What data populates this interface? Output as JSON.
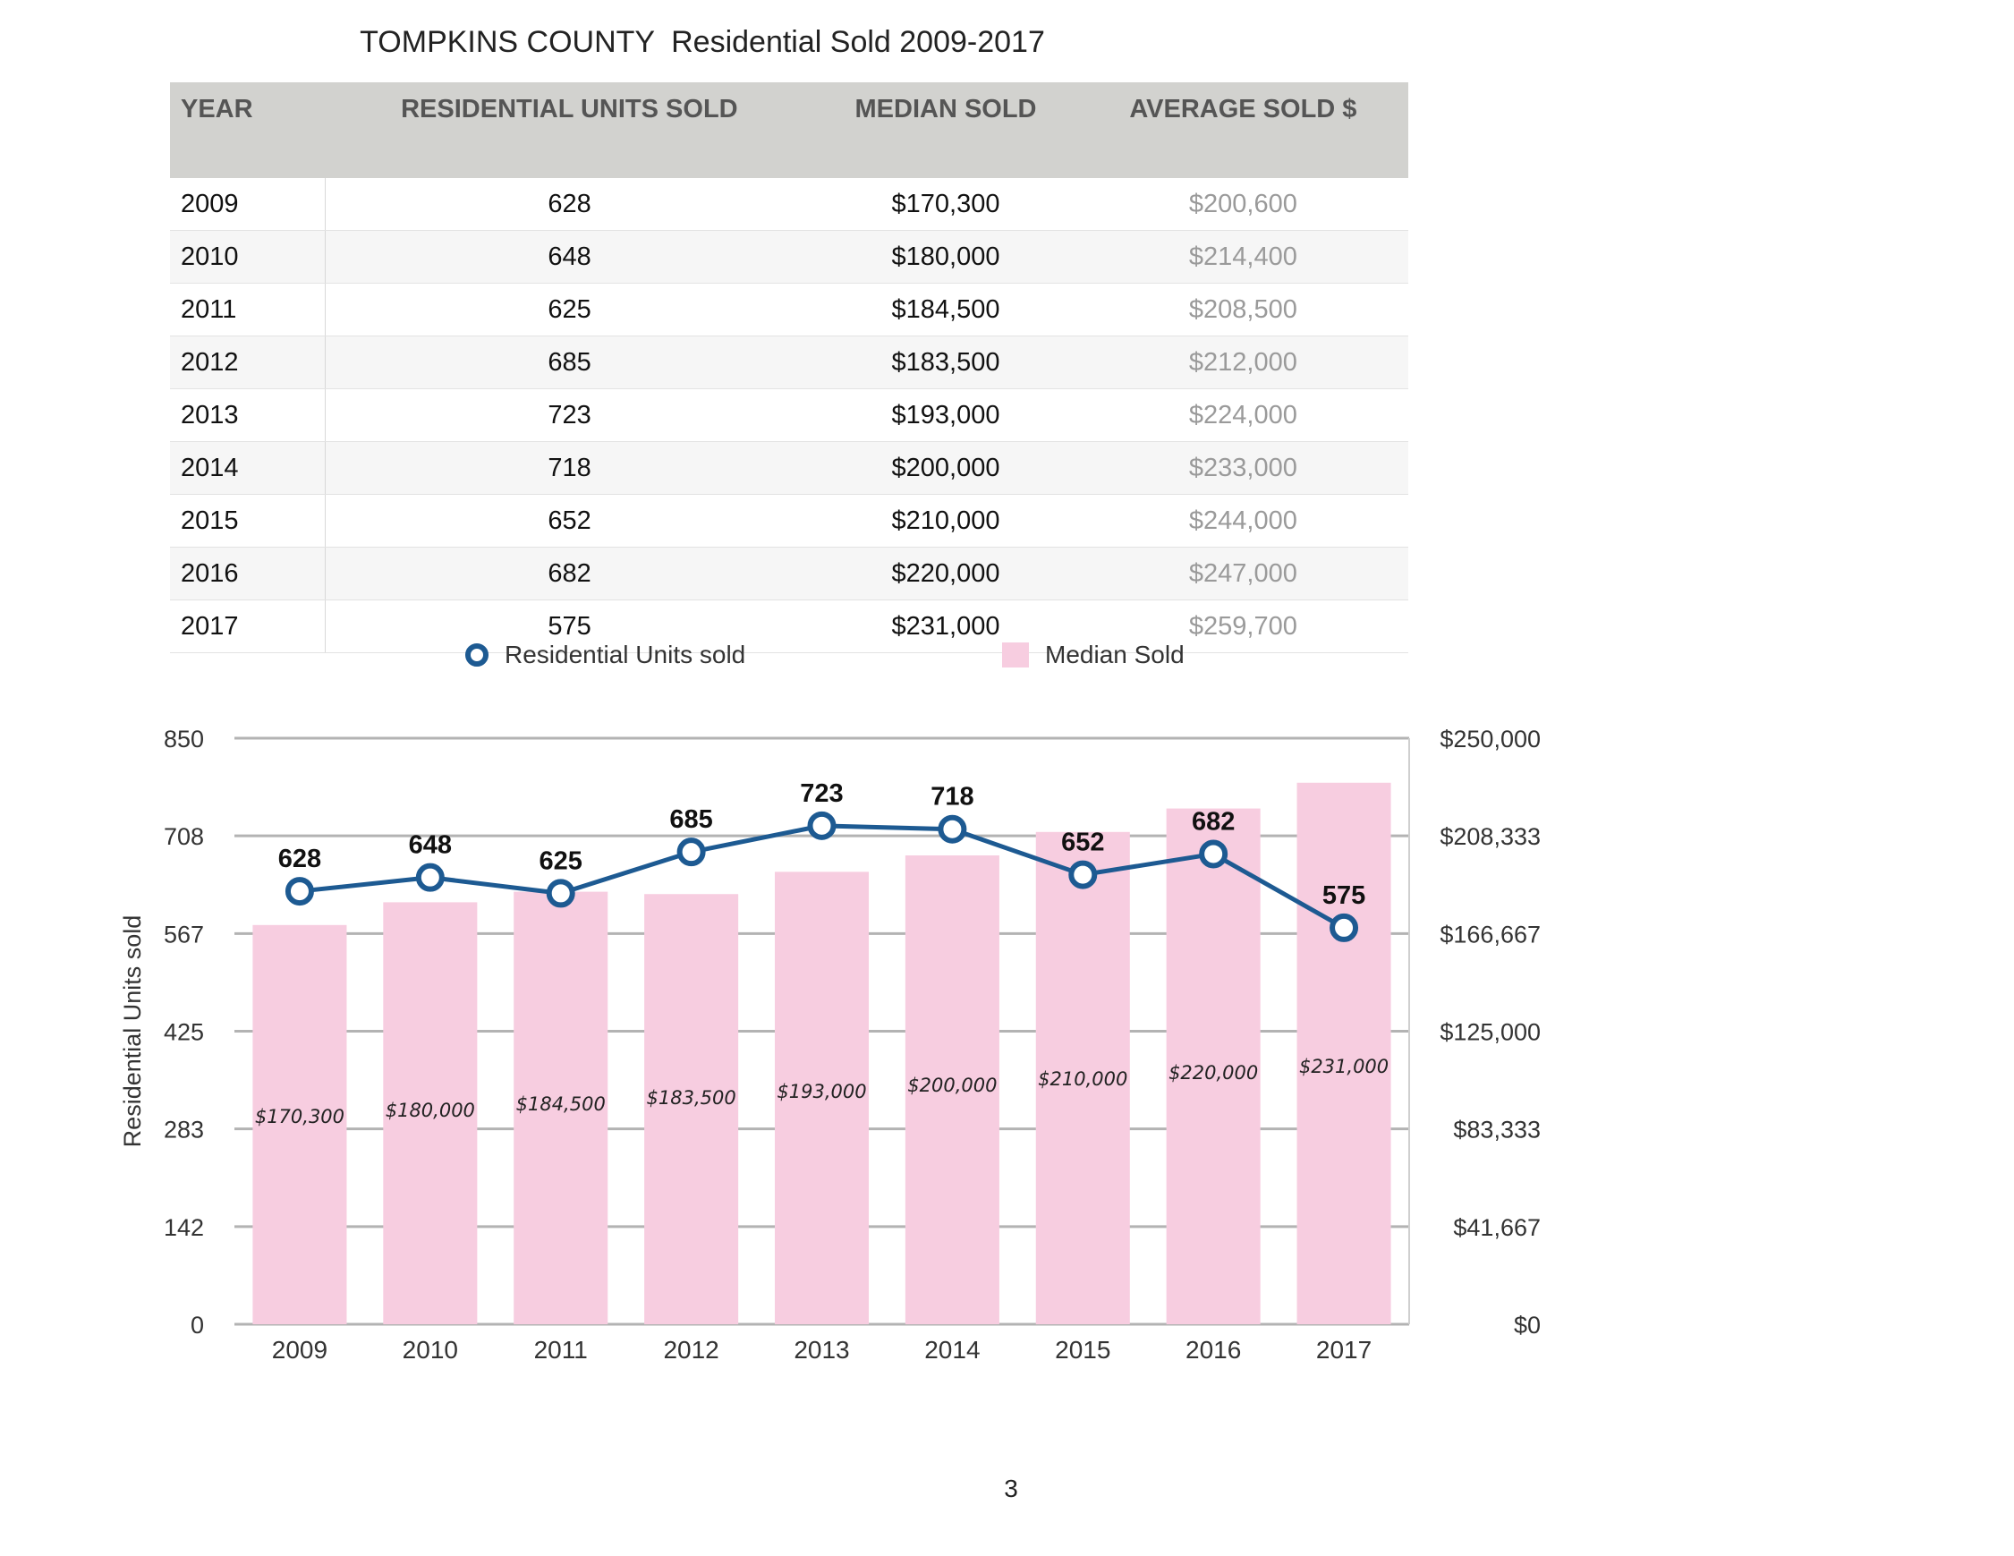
{
  "title": "TOMPKINS COUNTY",
  "subtitle": "Residential Sold 2009-2017",
  "table": {
    "headers": [
      "YEAR",
      "RESIDENTIAL UNITS SOLD",
      "MEDIAN SOLD",
      "AVERAGE SOLD $"
    ],
    "rows": [
      [
        "2009",
        "628",
        "$170,300",
        "$200,600"
      ],
      [
        "2010",
        "648",
        "$180,000",
        "$214,400"
      ],
      [
        "2011",
        "625",
        "$184,500",
        "$208,500"
      ],
      [
        "2012",
        "685",
        "$183,500",
        "$212,000"
      ],
      [
        "2013",
        "723",
        "$193,000",
        "$224,000"
      ],
      [
        "2014",
        "718",
        "$200,000",
        "$233,000"
      ],
      [
        "2015",
        "652",
        "$210,000",
        "$244,000"
      ],
      [
        "2016",
        "682",
        "$220,000",
        "$247,000"
      ],
      [
        "2017",
        "575",
        "$231,000",
        "$259,700"
      ]
    ]
  },
  "legend": {
    "line_label": "Residential Units sold",
    "bar_label": "Median Sold"
  },
  "colors": {
    "line": "#1d5a92",
    "bar": "#f7cde0",
    "grid": "#b3b3b3",
    "header_bg": "#d2d2cf"
  },
  "chart_data": {
    "type": "bar",
    "categories": [
      "2009",
      "2010",
      "2011",
      "2012",
      "2013",
      "2014",
      "2015",
      "2016",
      "2017"
    ],
    "series": [
      {
        "name": "Median Sold",
        "type": "bar",
        "axis": "right",
        "values": [
          170300,
          180000,
          184500,
          183500,
          193000,
          200000,
          210000,
          220000,
          231000
        ],
        "labels": [
          "$170,300",
          "$180,000",
          "$184,500",
          "$183,500",
          "$193,000",
          "$200,000",
          "$210,000",
          "$220,000",
          "$231,000"
        ]
      },
      {
        "name": "Residential Units sold",
        "type": "line",
        "axis": "left",
        "values": [
          628,
          648,
          625,
          685,
          723,
          718,
          652,
          682,
          575
        ]
      }
    ],
    "ylabel": "Residential Units sold",
    "ylim": [
      0,
      850
    ],
    "y2lim": [
      0,
      250000
    ],
    "y_ticks": [
      "0",
      "142",
      "283",
      "425",
      "567",
      "708",
      "850"
    ],
    "y2_ticks": [
      "$0",
      "$41,667",
      "$83,333",
      "$125,000",
      "$166,667",
      "$208,333",
      "$250,000"
    ],
    "grid": true,
    "legend_position": "top"
  },
  "page_number": "3"
}
